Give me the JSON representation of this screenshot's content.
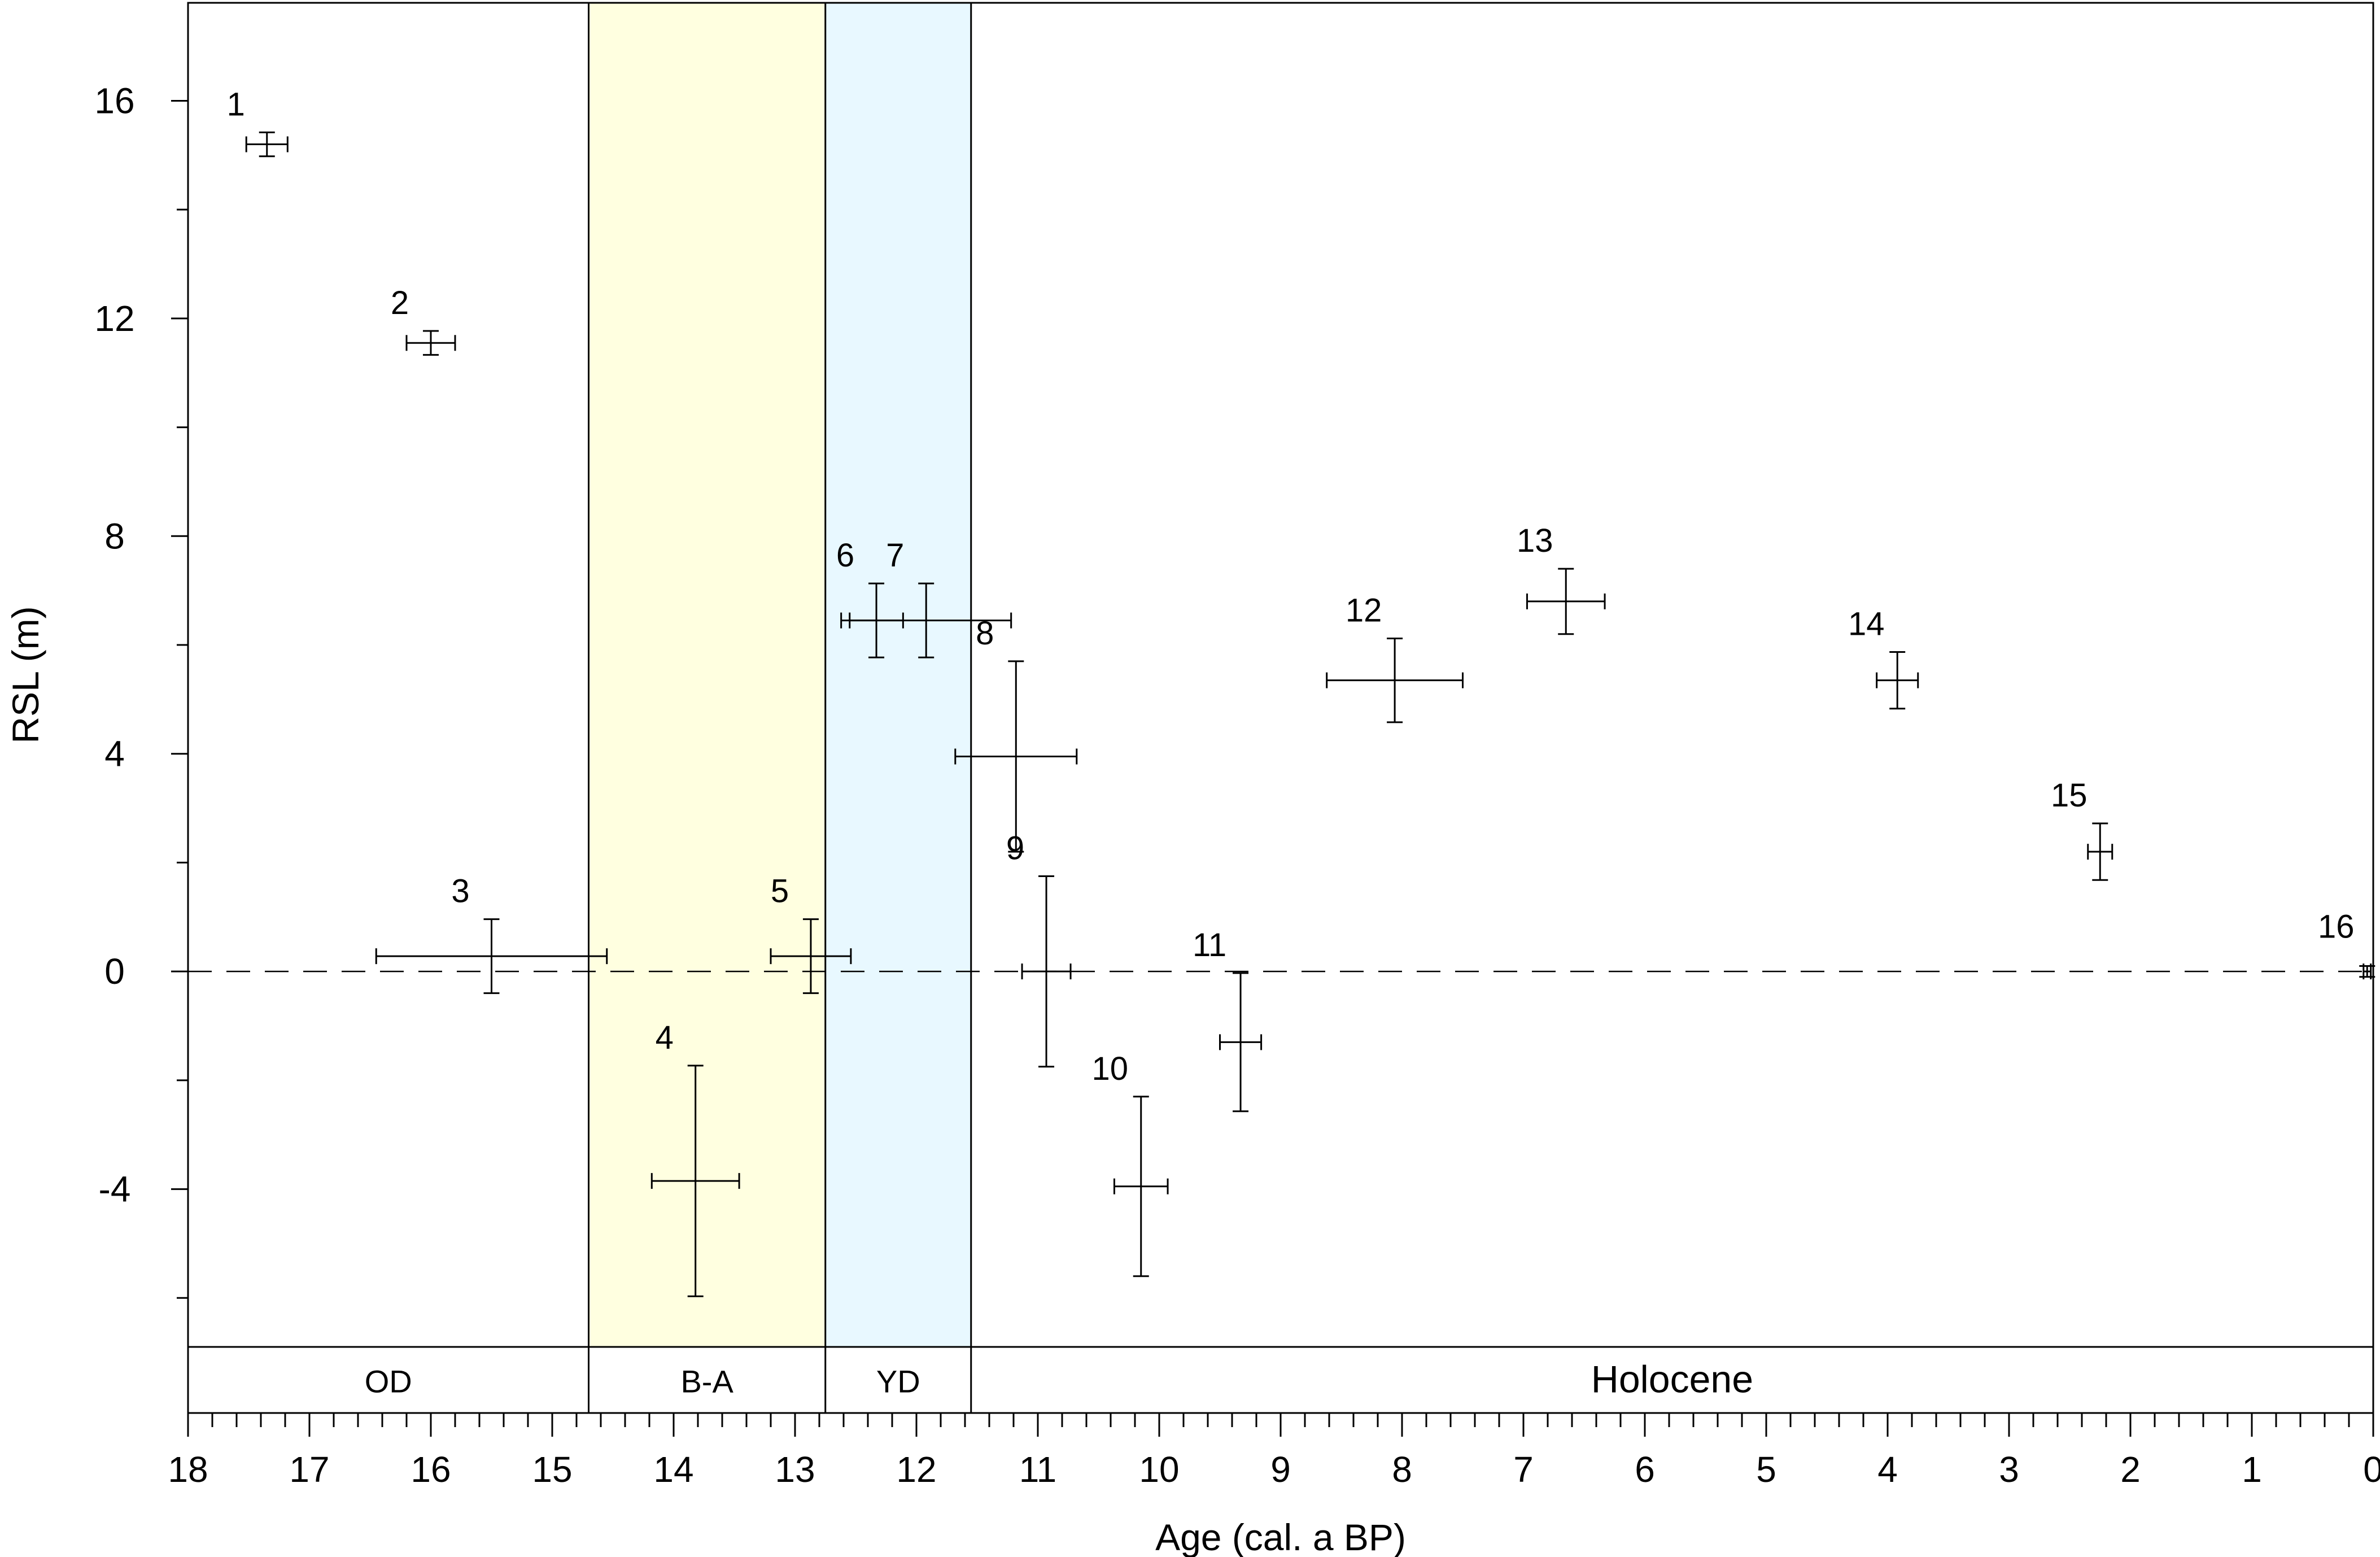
{
  "chart_data": {
    "type": "scatter",
    "title": "",
    "xlabel": "Age (cal. a BP)",
    "ylabel": "RSL (m)",
    "xlim": [
      18,
      0
    ],
    "ylim": [
      -6.9,
      17.8
    ],
    "x_reversed": true,
    "grid": false,
    "x_ticks": [
      "18",
      "17",
      "16",
      "15",
      "14",
      "13",
      "12",
      "11",
      "10",
      "9",
      "8",
      "7",
      "6",
      "5",
      "4",
      "3",
      "2",
      "1",
      "0"
    ],
    "y_ticks": [
      "16",
      "12",
      "8",
      "4",
      "0",
      "-4"
    ],
    "reference_line_y": 0,
    "periods": [
      {
        "label": "OD",
        "start": 18.0,
        "end": 14.7,
        "color": "#ffffff"
      },
      {
        "label": "B-A",
        "start": 14.7,
        "end": 12.75,
        "color": "#ffffe0"
      },
      {
        "label": "YD",
        "start": 12.75,
        "end": 11.55,
        "color": "#e8f8ff"
      },
      {
        "label": "Holocene",
        "start": 11.55,
        "end": 0.0,
        "color": "#ffffff"
      }
    ],
    "points": [
      {
        "label": "1",
        "x": 17.35,
        "y": 15.2,
        "x_err": 0.17,
        "y_err": 0.22
      },
      {
        "label": "2",
        "x": 16.0,
        "y": 11.55,
        "x_err": 0.2,
        "y_err": 0.22
      },
      {
        "label": "3",
        "x": 15.5,
        "y": 0.28,
        "x_err": 0.95,
        "y_err": 0.68
      },
      {
        "label": "4",
        "x": 13.82,
        "y": -3.85,
        "x_err": 0.36,
        "y_err": 2.12
      },
      {
        "label": "5",
        "x": 12.87,
        "y": 0.28,
        "x_err": 0.33,
        "y_err": 0.68
      },
      {
        "label": "6",
        "x": 12.33,
        "y": 6.45,
        "x_err": 0.22,
        "y_err": 0.68
      },
      {
        "label": "7",
        "x": 11.92,
        "y": 6.45,
        "x_err": 0.7,
        "y_err": 0.68
      },
      {
        "label": "8",
        "x": 11.18,
        "y": 3.95,
        "x_err": 0.5,
        "y_err": 1.75
      },
      {
        "label": "9",
        "x": 10.93,
        "y": 0.0,
        "x_err": 0.2,
        "y_err": 1.75
      },
      {
        "label": "10",
        "x": 10.15,
        "y": -3.95,
        "x_err": 0.22,
        "y_err": 1.65
      },
      {
        "label": "11",
        "x": 9.33,
        "y": -1.3,
        "x_err": 0.17,
        "y_err": 1.27
      },
      {
        "label": "12",
        "x": 8.06,
        "y": 5.35,
        "x_err": 0.56,
        "y_err": 0.77
      },
      {
        "label": "13",
        "x": 6.65,
        "y": 6.8,
        "x_err": 0.32,
        "y_err": 0.6
      },
      {
        "label": "14",
        "x": 3.92,
        "y": 5.35,
        "x_err": 0.17,
        "y_err": 0.52
      },
      {
        "label": "15",
        "x": 2.25,
        "y": 2.2,
        "x_err": 0.1,
        "y_err": 0.52
      },
      {
        "label": "16",
        "x": 0.05,
        "y": 0.0,
        "x_err": 0.03,
        "y_err": 0.1
      }
    ]
  }
}
